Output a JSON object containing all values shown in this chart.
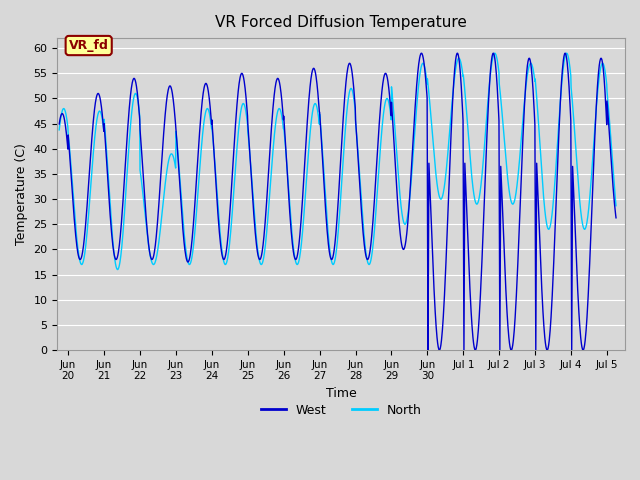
{
  "title": "VR Forced Diffusion Temperature",
  "xlabel": "Time",
  "ylabel": "Temperature (C)",
  "ylim": [
    0,
    62
  ],
  "yticks": [
    0,
    5,
    10,
    15,
    20,
    25,
    30,
    35,
    40,
    45,
    50,
    55,
    60
  ],
  "xtick_labels": [
    "Jun\n20",
    "Jun\n21",
    "Jun\n22",
    "Jun\n23",
    "Jun\n24",
    "Jun\n25",
    "Jun\n26",
    "Jun\n27",
    "Jun\n28",
    "Jun\n29",
    "Jun\n30",
    "Jul 1",
    "Jul 2",
    "Jul 3",
    "Jul 4",
    "Jul 5"
  ],
  "xtick_positions": [
    0,
    1,
    2,
    3,
    4,
    5,
    6,
    7,
    8,
    9,
    10,
    11,
    12,
    13,
    14,
    15
  ],
  "legend_labels": [
    "West",
    "North"
  ],
  "west_color": "#0000CD",
  "north_color": "#00CCFF",
  "background_color": "#D8D8D8",
  "annotation_text": "VR_fd",
  "annotation_bg": "#FFFF99",
  "annotation_border": "#8B0000"
}
